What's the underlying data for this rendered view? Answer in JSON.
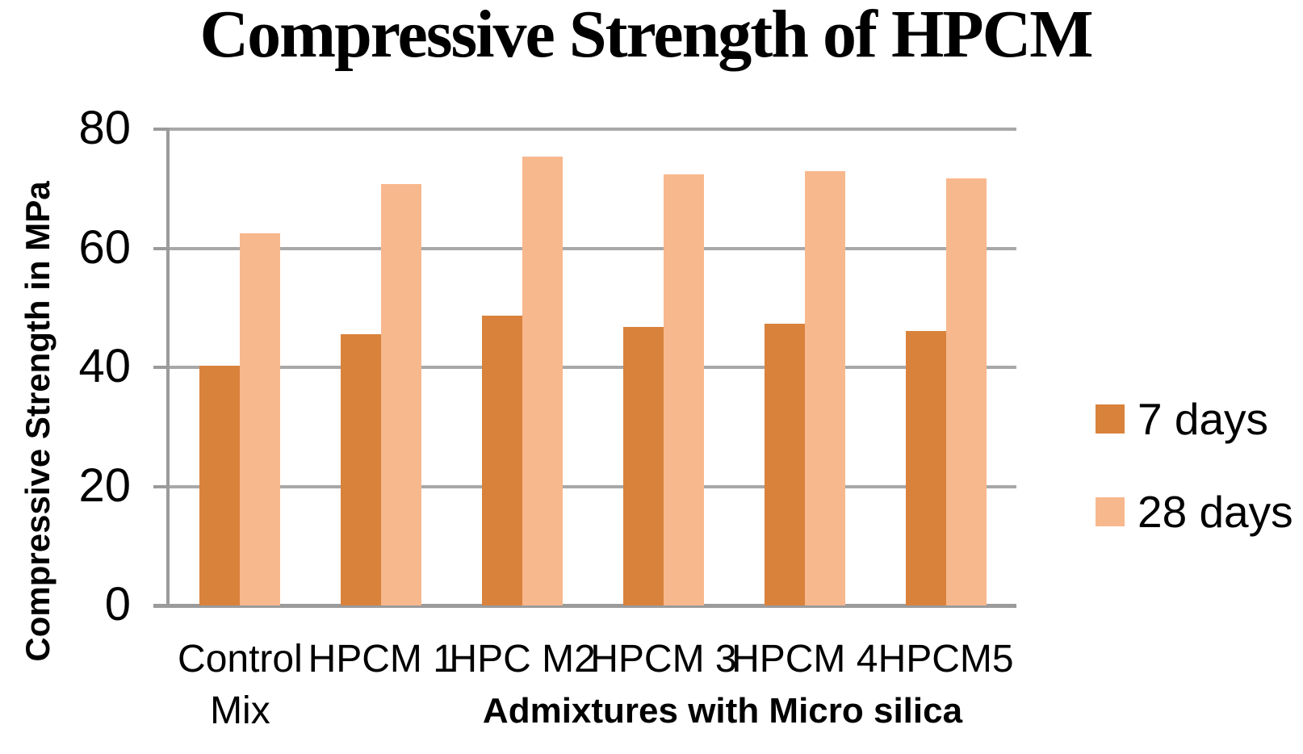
{
  "title": "Compressive Strength of HPCM",
  "chart_data": {
    "type": "bar",
    "title": "Compressive Strength of HPCM",
    "xlabel": "Admixtures with Micro silica",
    "ylabel": "Compressive Strength in MPa",
    "categories": [
      "Control\nMix",
      "HPCM 1",
      "HPC M2",
      "HPCM 3",
      "HPCM 4",
      "HPCM5"
    ],
    "series": [
      {
        "name": "7 days",
        "color": "#D9823C",
        "values": [
          40.3,
          45.5,
          48.7,
          46.8,
          47.3,
          46.1
        ]
      },
      {
        "name": "28 days",
        "color": "#F8B88D",
        "values": [
          62.5,
          70.8,
          75.4,
          72.4,
          73.0,
          71.7
        ]
      }
    ],
    "ylim": [
      0,
      80
    ],
    "yticks": [
      0,
      20,
      40,
      60,
      80
    ],
    "grid": true,
    "legend_position": "right"
  },
  "colors": {
    "background": "#FFFFFF",
    "gridline": "#A8A8A8",
    "axis": "#9B9B9B",
    "text": "#000000"
  }
}
